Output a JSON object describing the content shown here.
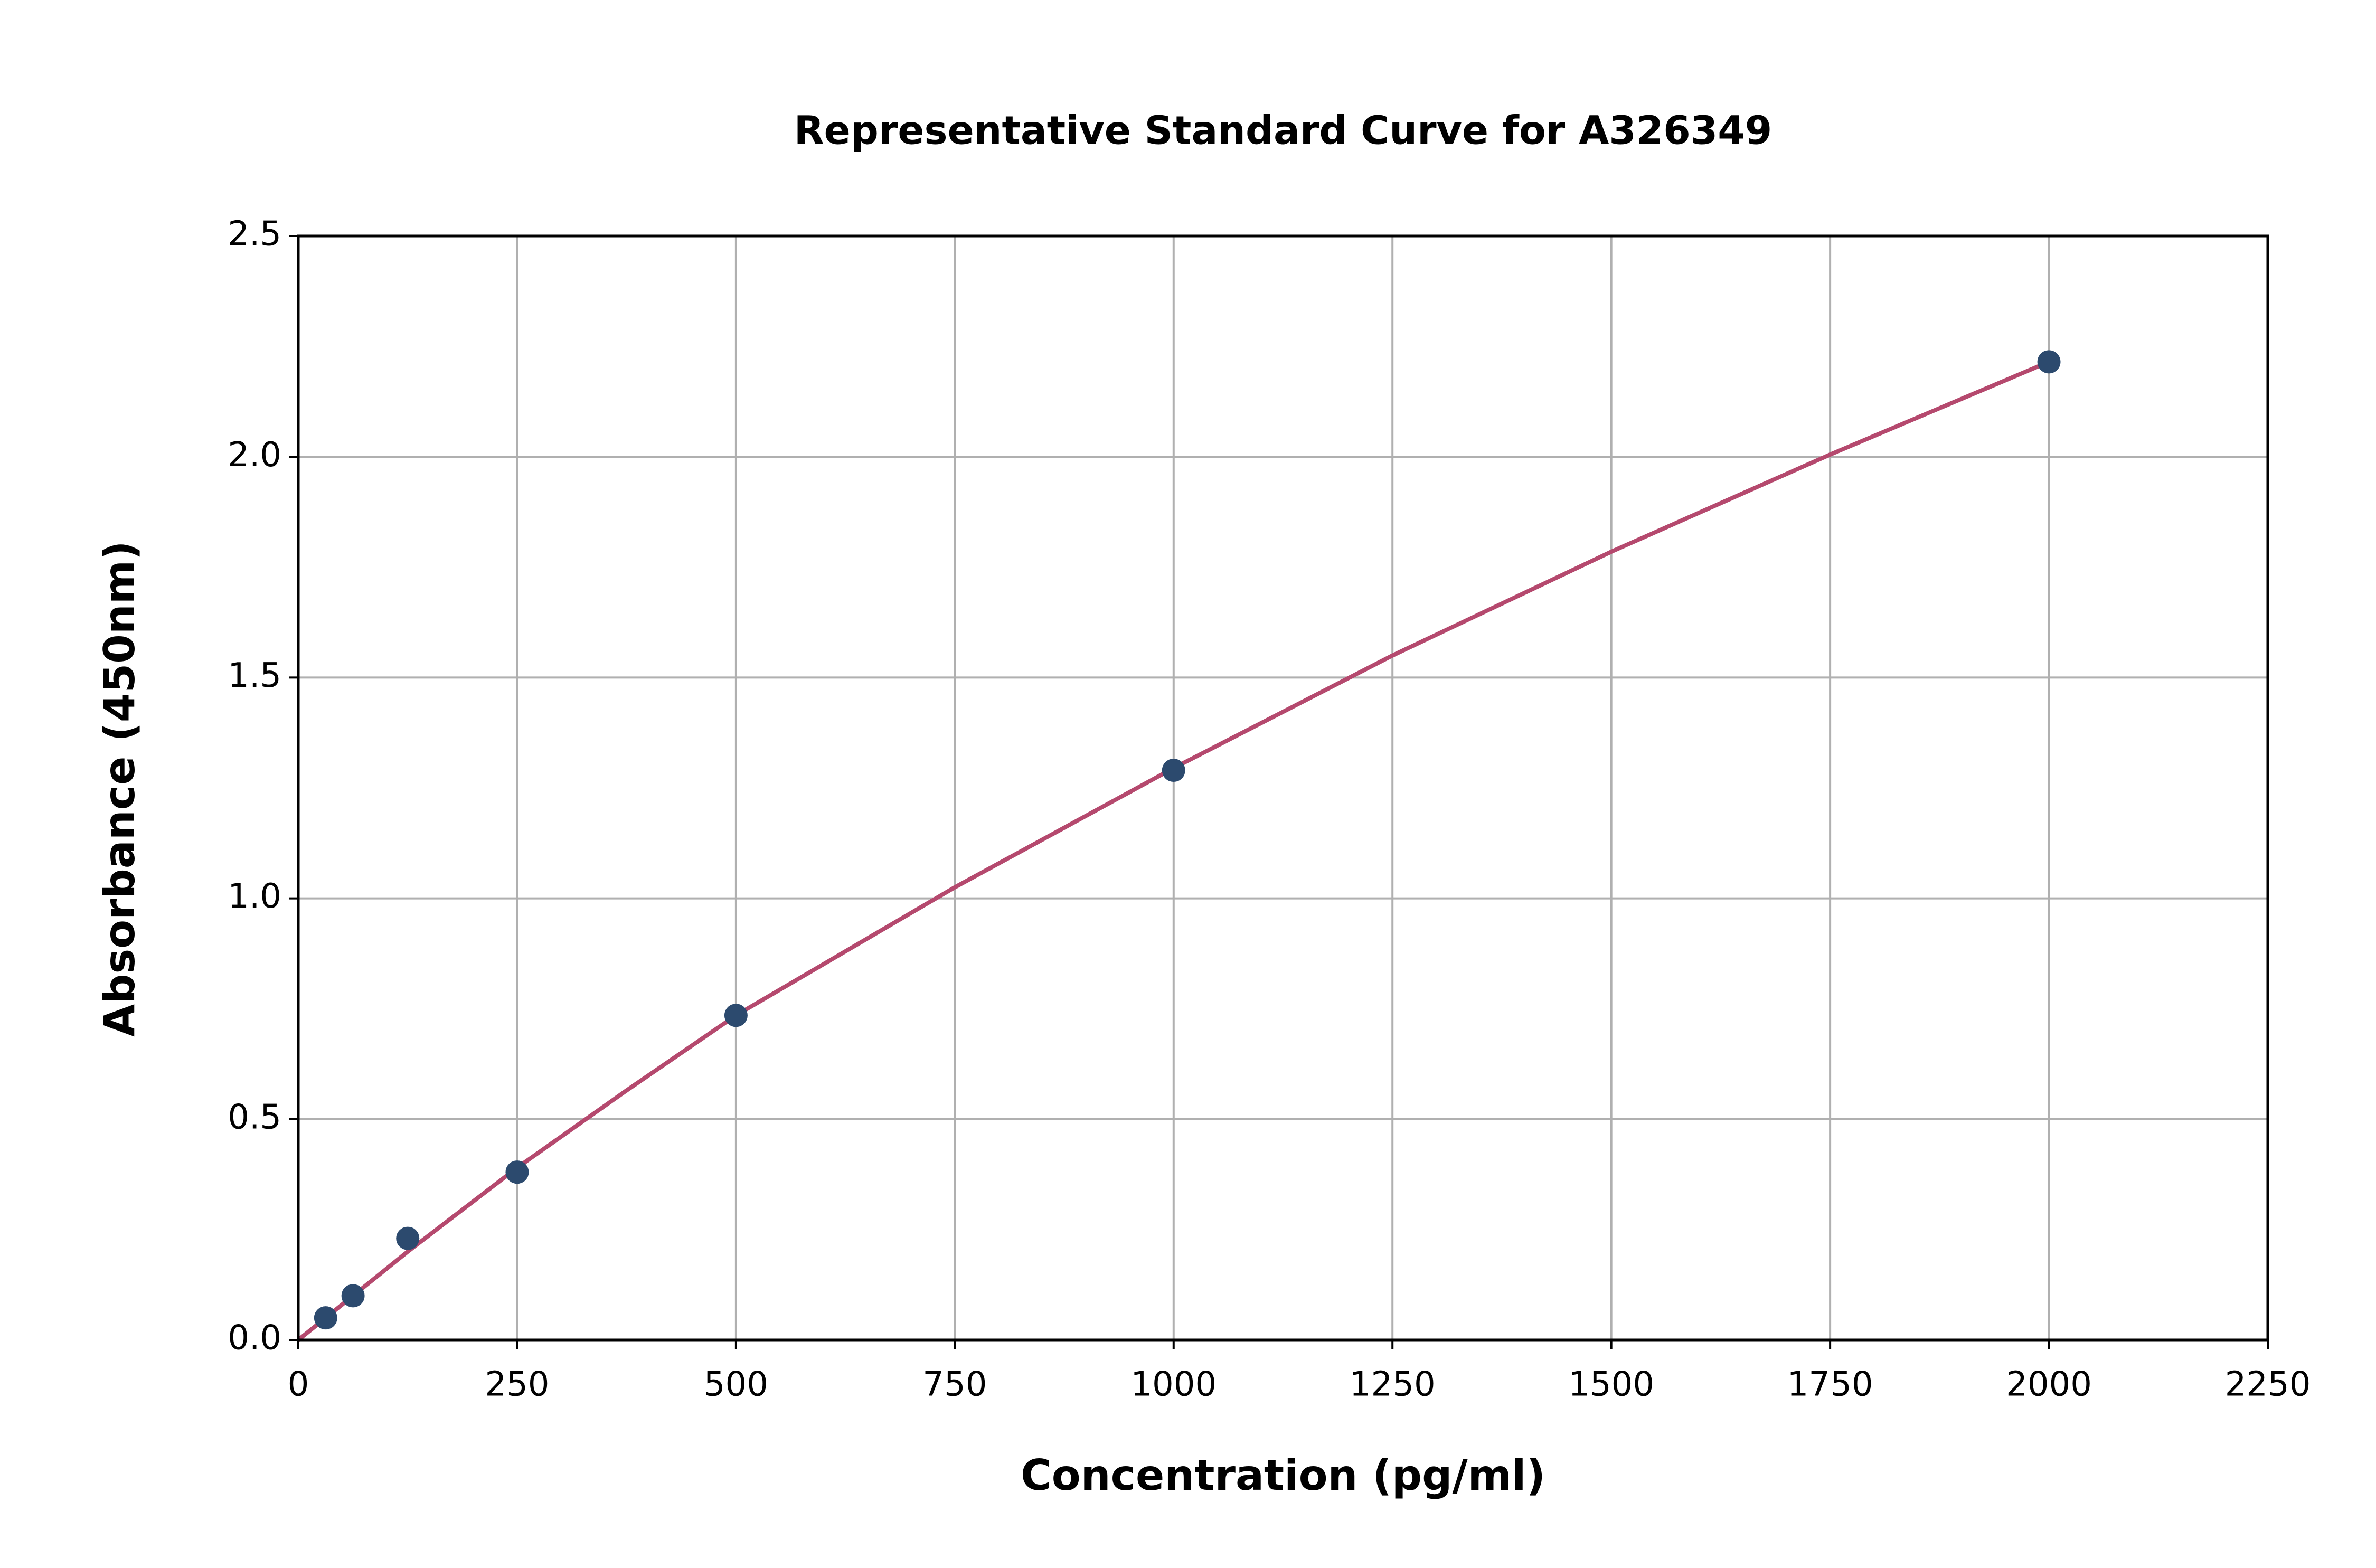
{
  "chart_data": {
    "type": "scatter",
    "title": "Representative Standard Curve for A326349",
    "x_label": "Concentration (pg/ml)",
    "y_label": "Absorbance (450nm)",
    "xlim": [
      0,
      2250
    ],
    "ylim": [
      0,
      2.5
    ],
    "xticks": [
      0,
      250,
      500,
      750,
      1000,
      1250,
      1500,
      1750,
      2000,
      2250
    ],
    "yticks": [
      {
        "value": 0,
        "label": "0.0"
      },
      0.5,
      {
        "value": 1,
        "label": "1.0"
      },
      1.5,
      {
        "value": 2,
        "label": "2.0"
      },
      2.5
    ],
    "grid": true,
    "series": [
      {
        "type": "line",
        "color": "#b5496e",
        "x": [
          0,
          125,
          250,
          375,
          500,
          750,
          1000,
          1250,
          1500,
          1750,
          2000
        ],
        "values": [
          0,
          0.2,
          0.39,
          0.565,
          0.735,
          1.025,
          1.295,
          1.55,
          1.785,
          2.005,
          2.215
        ]
      },
      {
        "type": "scatter",
        "color": "#2c4a6e",
        "x": [
          31.25,
          62.5,
          125,
          250,
          500,
          1000,
          2000
        ],
        "values": [
          0.05,
          0.1,
          0.23,
          0.38,
          0.735,
          1.29,
          2.215
        ]
      }
    ]
  }
}
